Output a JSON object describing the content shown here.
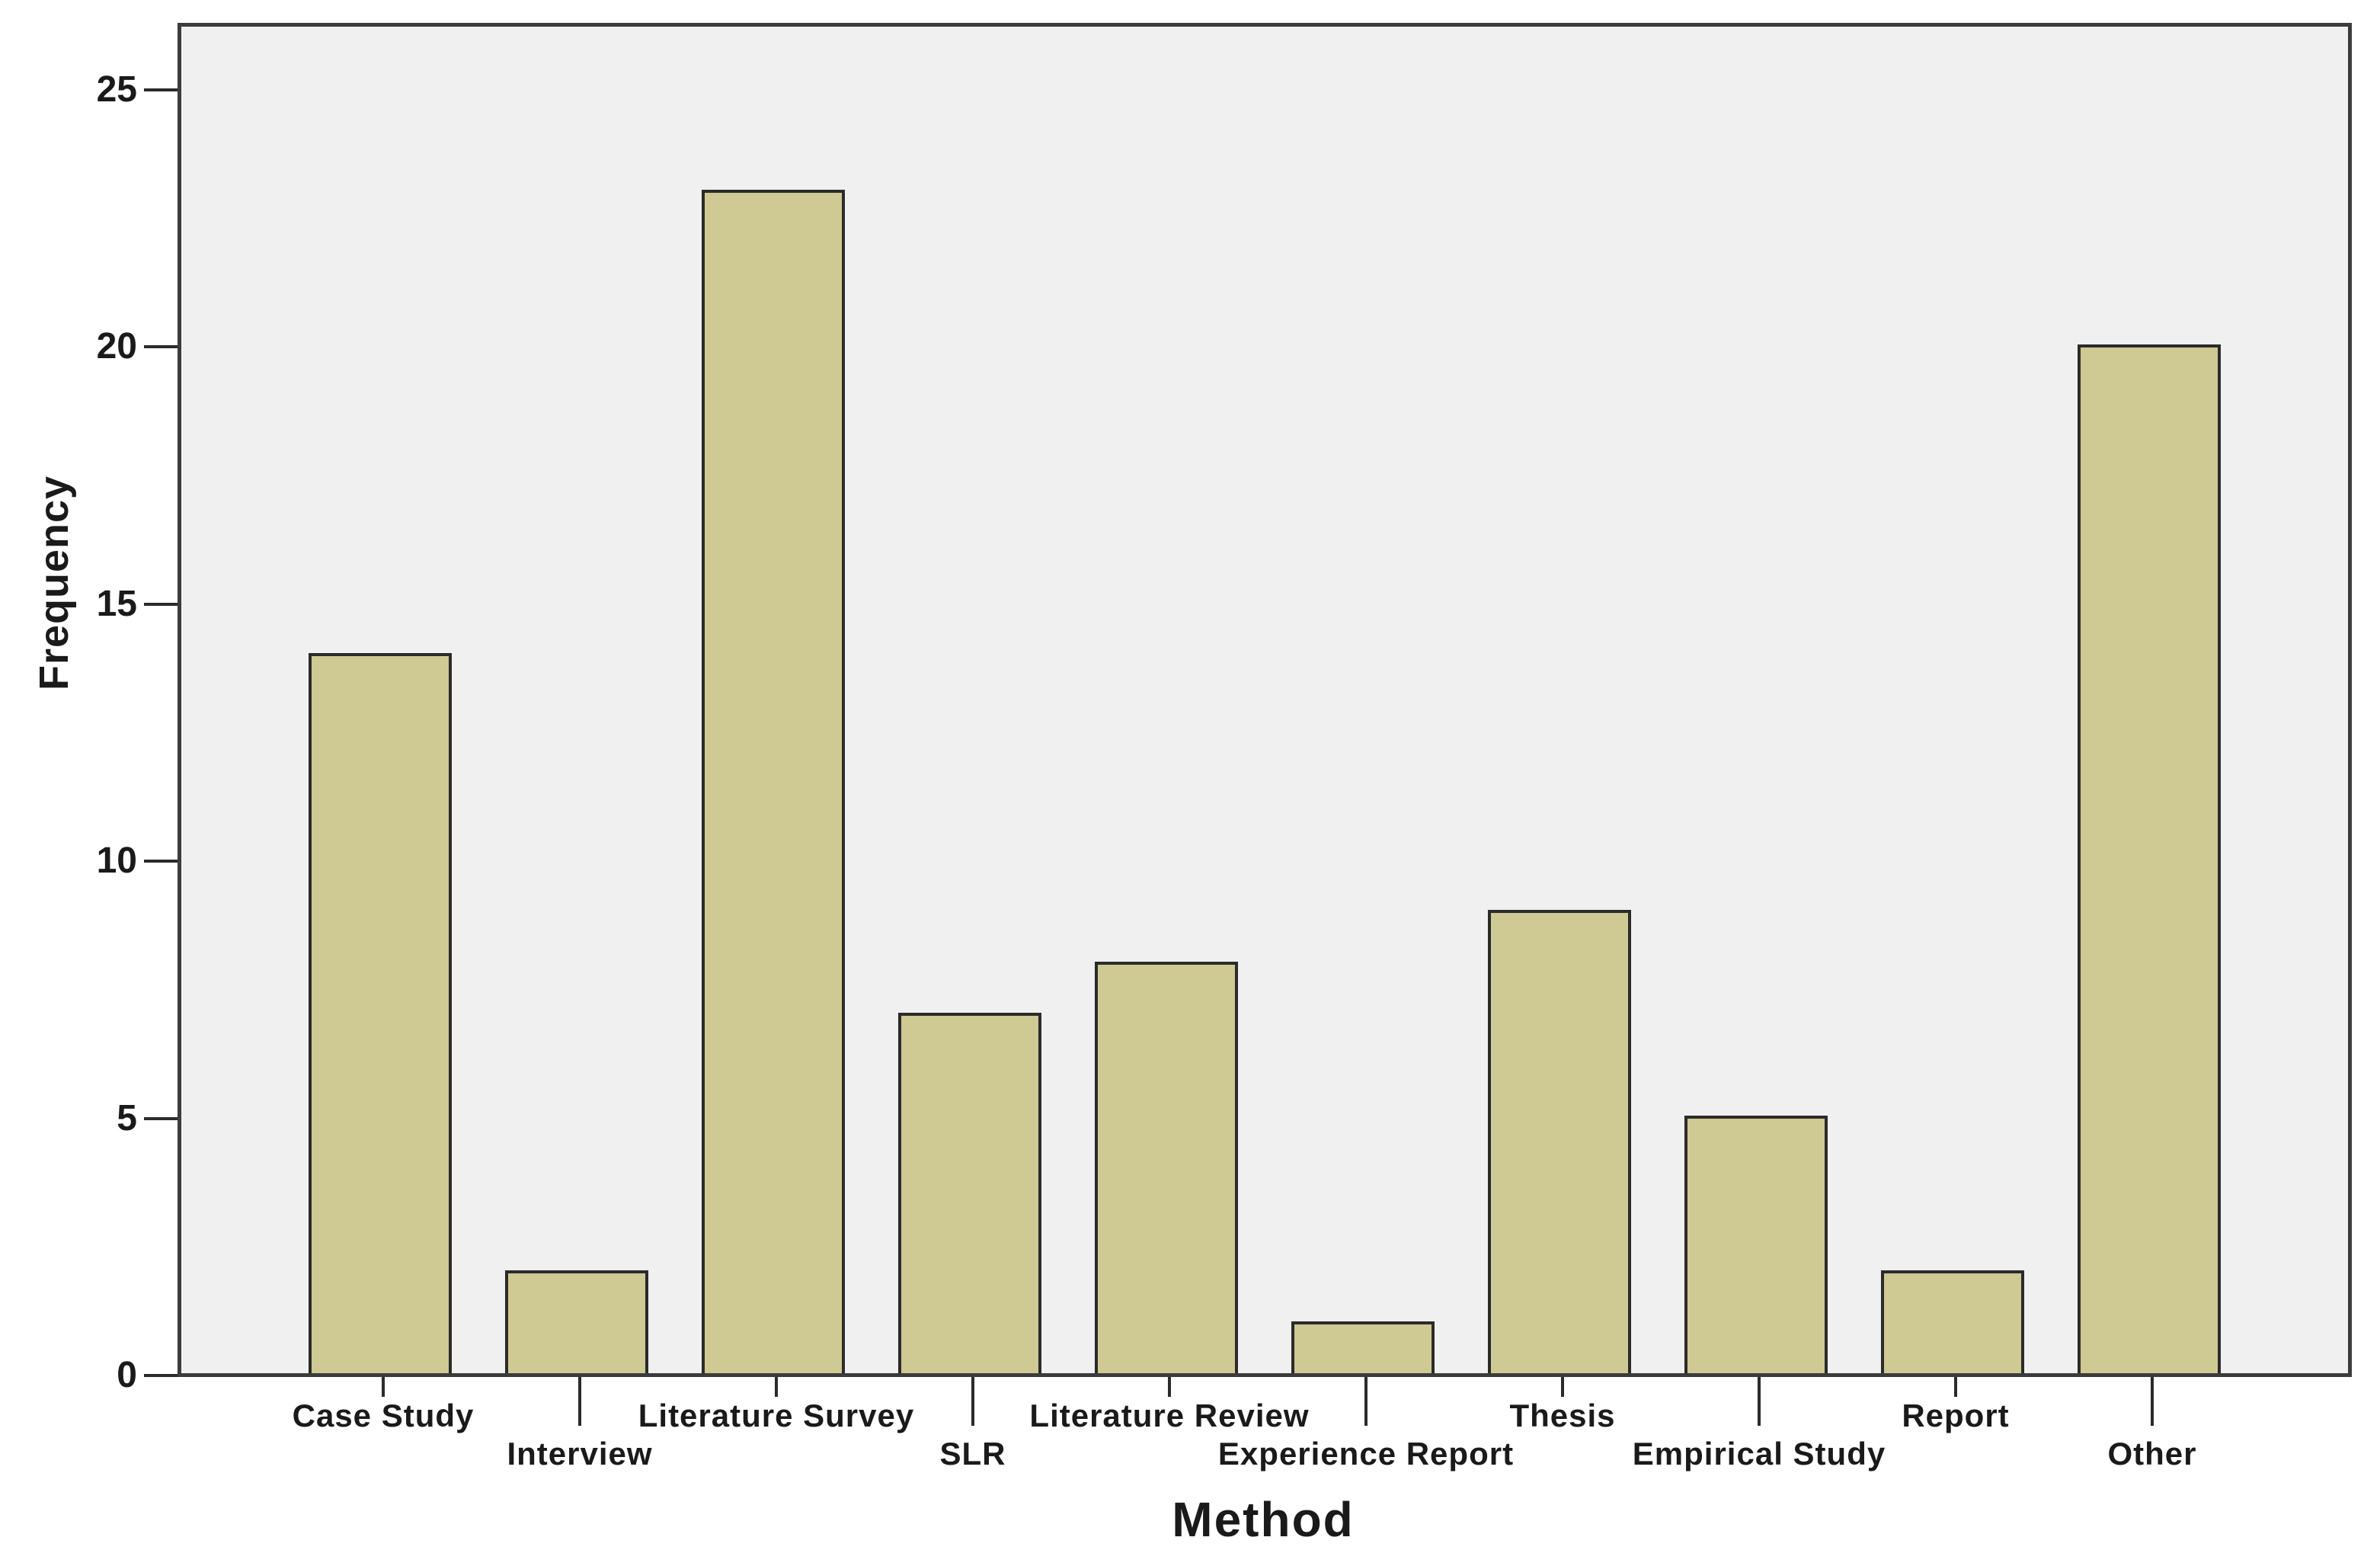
{
  "chart_data": {
    "type": "bar",
    "title": "",
    "categories": [
      "Case Study",
      "Interview",
      "Literature Survey",
      "SLR",
      "Literature Review",
      "Experience Report",
      "Thesis",
      "Empirical Study",
      "Report",
      "Other"
    ],
    "values": [
      14,
      2,
      23,
      7,
      8,
      1,
      9,
      5,
      2,
      20
    ],
    "xlabel": "Method",
    "ylabel": "Frequency",
    "yticks": [
      0,
      5,
      10,
      15,
      20,
      25
    ],
    "ylim": [
      0,
      25
    ],
    "grid": false,
    "legend_position": "none",
    "label_layout": "staggered-two-rows",
    "colors": {
      "bar_fill": "#cfc993",
      "bar_border": "#2b2b2b",
      "plot_background": "#f0f0f1",
      "frame": "#3c3c3c",
      "page_background": "#ffffff",
      "text": "#1a1a1a"
    }
  }
}
